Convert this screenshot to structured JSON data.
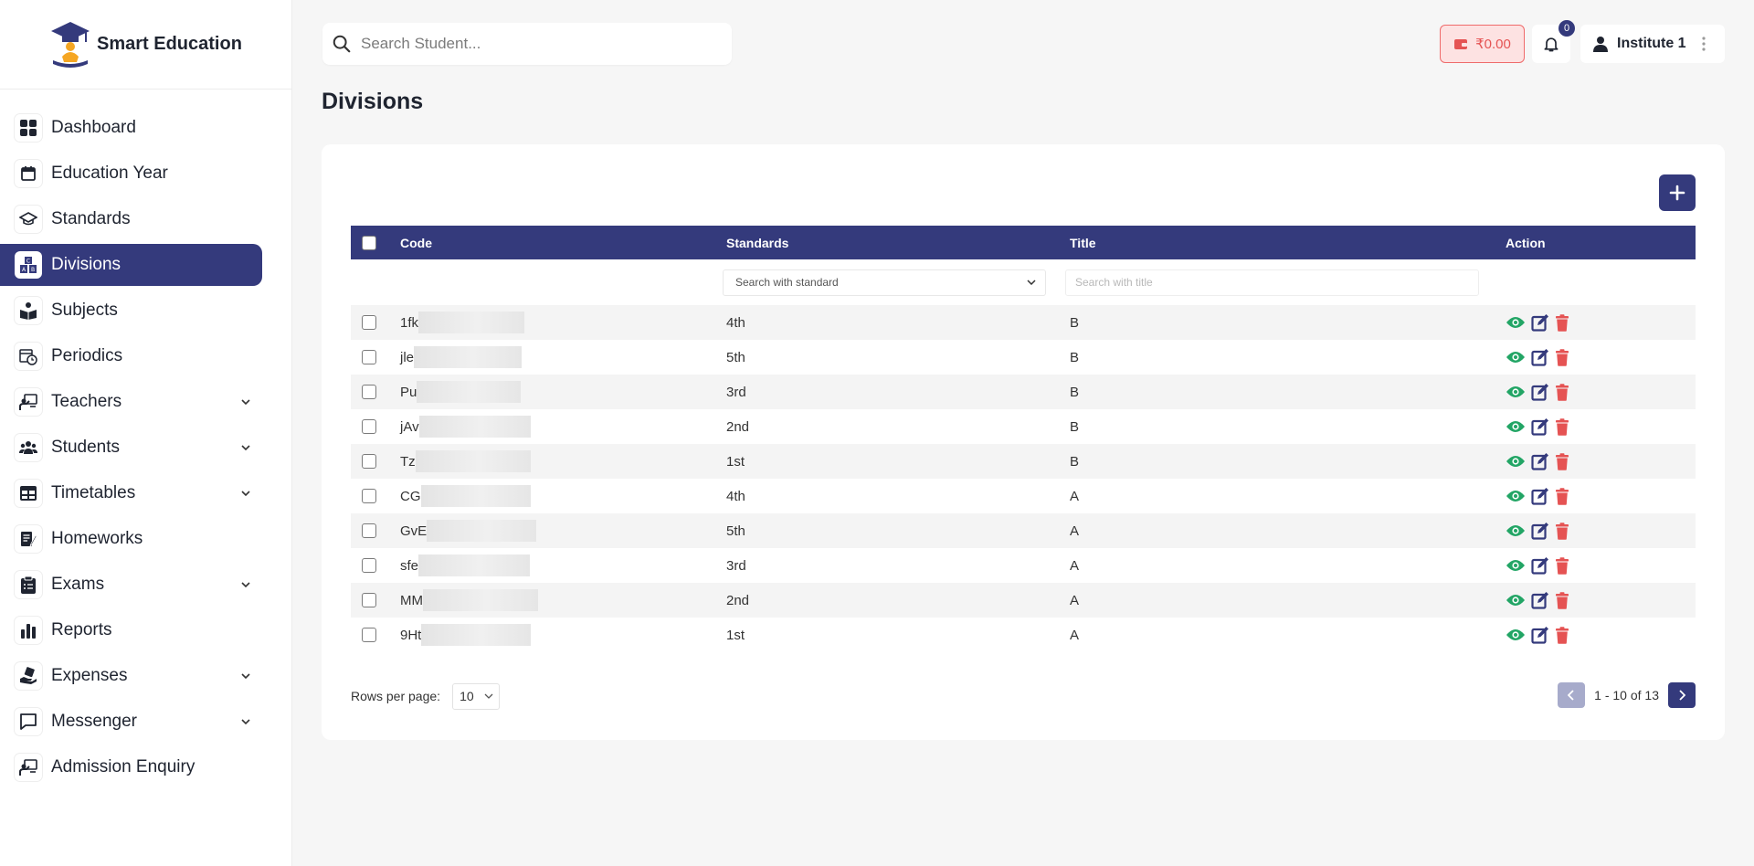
{
  "brand": {
    "name": "Smart Education",
    "logo": "graduation-cap-logo"
  },
  "sidebar": {
    "items": [
      {
        "label": "Dashboard",
        "icon": "grid-icon",
        "expandable": false,
        "active": false
      },
      {
        "label": "Education Year",
        "icon": "calendar-icon",
        "expandable": false,
        "active": false
      },
      {
        "label": "Standards",
        "icon": "graduation-cap-icon",
        "expandable": false,
        "active": false
      },
      {
        "label": "Divisions",
        "icon": "abc-blocks-icon",
        "expandable": false,
        "active": true
      },
      {
        "label": "Subjects",
        "icon": "book-reader-icon",
        "expandable": false,
        "active": false
      },
      {
        "label": "Periodics",
        "icon": "calendar-clock-icon",
        "expandable": false,
        "active": false
      },
      {
        "label": "Teachers",
        "icon": "teacher-board-icon",
        "expandable": true,
        "active": false
      },
      {
        "label": "Students",
        "icon": "users-icon",
        "expandable": true,
        "active": false
      },
      {
        "label": "Timetables",
        "icon": "table-icon",
        "expandable": true,
        "active": false
      },
      {
        "label": "Homeworks",
        "icon": "notebook-pen-icon",
        "expandable": false,
        "active": false
      },
      {
        "label": "Exams",
        "icon": "clipboard-icon",
        "expandable": true,
        "active": false
      },
      {
        "label": "Reports",
        "icon": "bar-chart-icon",
        "expandable": false,
        "active": false
      },
      {
        "label": "Expenses",
        "icon": "hand-money-icon",
        "expandable": true,
        "active": false
      },
      {
        "label": "Messenger",
        "icon": "chat-bubble-icon",
        "expandable": true,
        "active": false
      },
      {
        "label": "Admission Enquiry",
        "icon": "teacher-board-icon",
        "expandable": false,
        "active": false
      }
    ]
  },
  "topbar": {
    "search_placeholder": "Search Student...",
    "wallet_amount": "₹0.00",
    "notification_count": "0",
    "user_name": "Institute 1"
  },
  "page": {
    "title": "Divisions"
  },
  "table": {
    "headers": {
      "code": "Code",
      "standards": "Standards",
      "title": "Title",
      "action": "Action"
    },
    "filters": {
      "standard_placeholder": "Search with standard",
      "title_placeholder": "Search with title"
    },
    "rows": [
      {
        "code": "1fk",
        "standard": "4th",
        "title": "B"
      },
      {
        "code": "jle",
        "standard": "5th",
        "title": "B"
      },
      {
        "code": "Pu",
        "standard": "3rd",
        "title": "B"
      },
      {
        "code": "jAv",
        "standard": "2nd",
        "title": "B"
      },
      {
        "code": "Tz",
        "standard": "1st",
        "title": "B"
      },
      {
        "code": "CG",
        "standard": "4th",
        "title": "A"
      },
      {
        "code": "GvE",
        "standard": "5th",
        "title": "A"
      },
      {
        "code": "sfe",
        "standard": "3rd",
        "title": "A"
      },
      {
        "code": "MM",
        "standard": "2nd",
        "title": "A"
      },
      {
        "code": "9Ht",
        "standard": "1st",
        "title": "A"
      }
    ]
  },
  "pagination": {
    "rows_label": "Rows per page:",
    "rows_value": "10",
    "range": "1 - 10 of 13"
  },
  "colors": {
    "primary": "#343a7c",
    "view": "#22a565",
    "edit": "#343a7c",
    "delete": "#e55353"
  }
}
